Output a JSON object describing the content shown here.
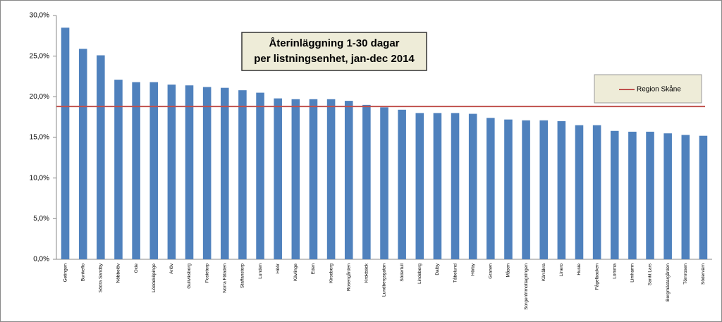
{
  "chart_data": {
    "type": "bar",
    "title": [
      "Återinläggning 1-30 dagar",
      "per listningsenhet, jan-dec 2014"
    ],
    "categories": [
      "Getingen",
      "Bunkeflo",
      "Södra Sandby",
      "Nöbbelöv",
      "Oxie",
      "Löddeköpinge",
      "Arlöv",
      "Gullviksborg",
      "Fosietorp",
      "Norra Fäladen",
      "Staffanstorp",
      "Lunden",
      "Höör",
      "Kävlinge",
      "Eden",
      "Kirseberg",
      "Rosengården",
      "Krokbäck",
      "Lundbergsgatan",
      "Södertull",
      "Lindeborg",
      "Dalby",
      "Tåbelund",
      "Hörby",
      "Granen",
      "Måsen",
      "Sorgenfrimottagningen",
      "Kärråkra",
      "Linero",
      "Husie",
      "Fågelbacken",
      "Lomma",
      "Limhamn",
      "Sankt Lars",
      "Borgmästargården",
      "Törnrosen",
      "Södervärn"
    ],
    "values": [
      28.5,
      25.9,
      25.1,
      22.1,
      21.8,
      21.8,
      21.5,
      21.4,
      21.2,
      21.1,
      20.8,
      20.5,
      19.8,
      19.7,
      19.7,
      19.7,
      19.5,
      19.0,
      18.7,
      18.4,
      18.0,
      18.0,
      18.0,
      17.9,
      17.4,
      17.2,
      17.1,
      17.1,
      17.0,
      16.5,
      16.5,
      15.8,
      15.7,
      15.7,
      15.5,
      15.3,
      15.2
    ],
    "color": "#4f81bd",
    "reference_line": {
      "name": "Region Skåne",
      "value": 18.8,
      "color": "#c0504d"
    },
    "ylim": [
      0,
      30
    ],
    "yticks": [
      {
        "value": 0,
        "label": "0,0%"
      },
      {
        "value": 5,
        "label": "5,0%"
      },
      {
        "value": 10,
        "label": "10,0%"
      },
      {
        "value": 15,
        "label": "15,0%"
      },
      {
        "value": 20,
        "label": "20,0%"
      },
      {
        "value": 25,
        "label": "25,0%"
      },
      {
        "value": 30,
        "label": "30,0%"
      }
    ],
    "grid": false
  }
}
